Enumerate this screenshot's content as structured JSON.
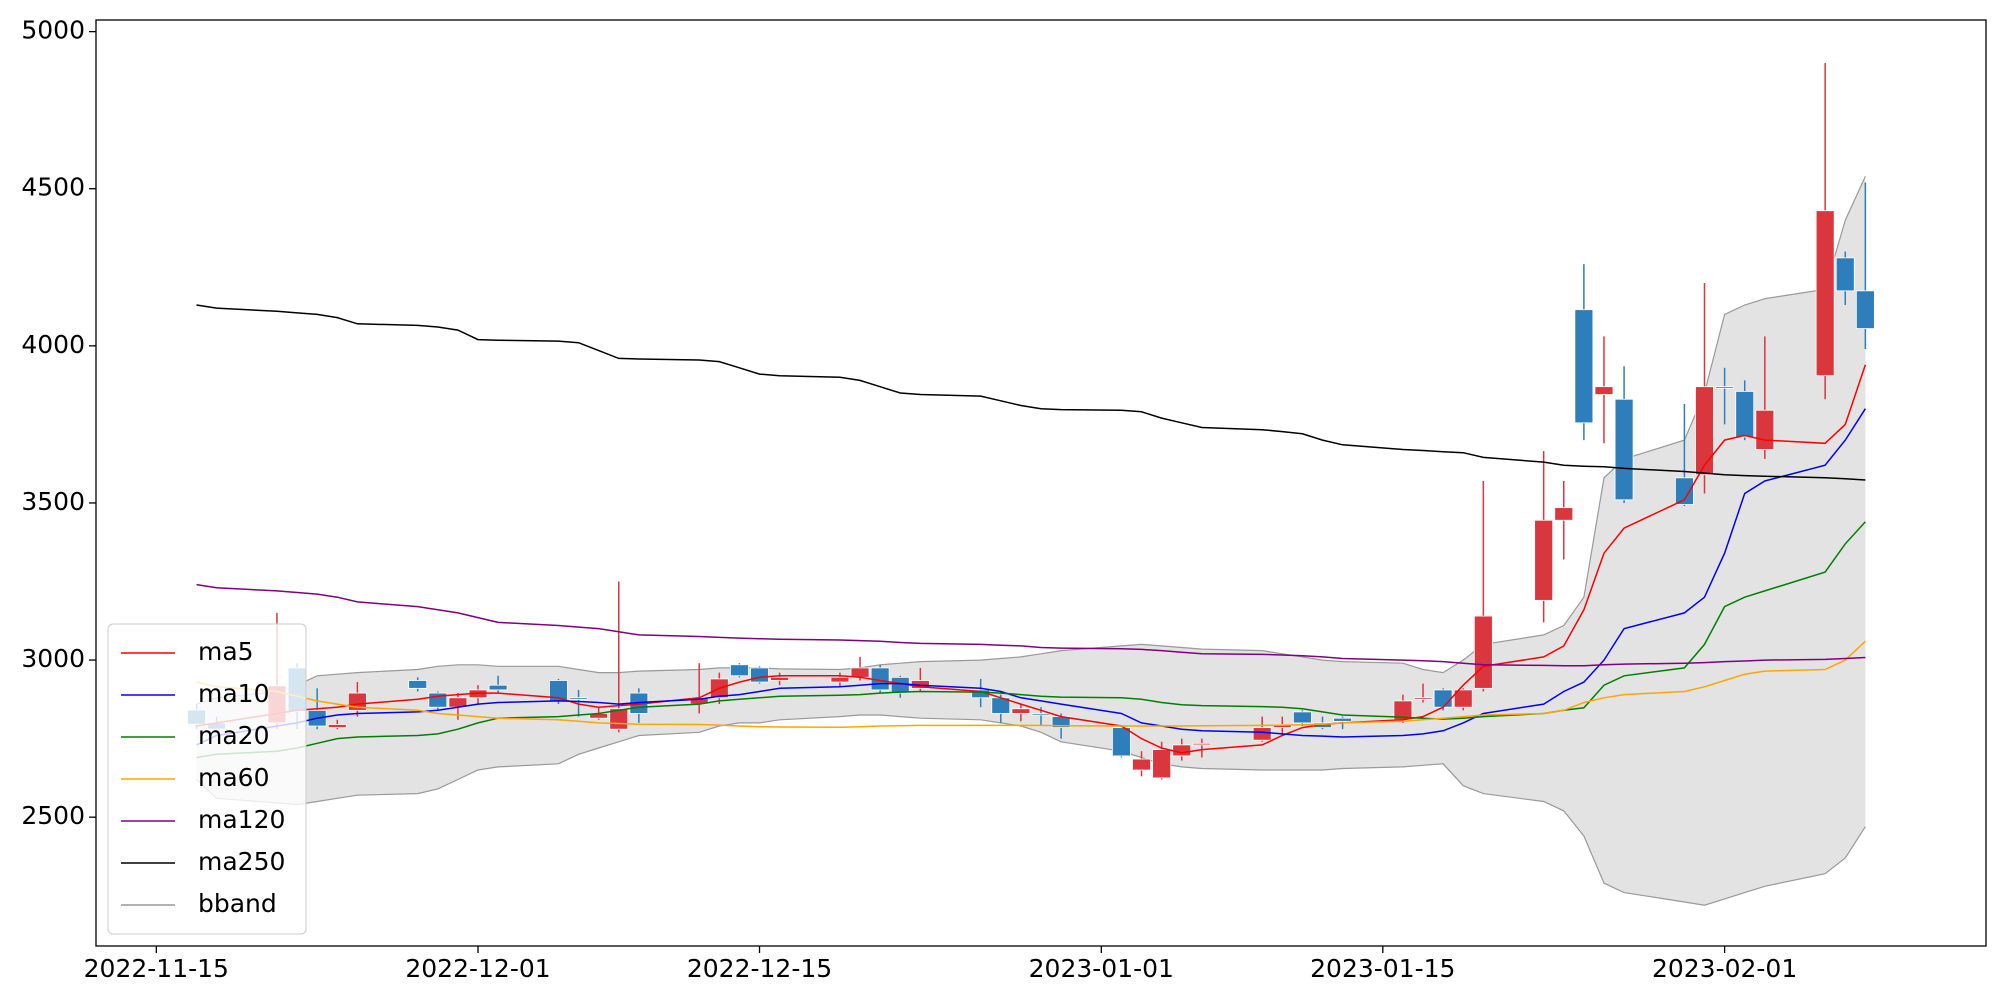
{
  "chart_data": {
    "type": "candlestick",
    "x": [
      "2022-11-17",
      "2022-11-18",
      "2022-11-21",
      "2022-11-22",
      "2022-11-23",
      "2022-11-24",
      "2022-11-25",
      "2022-11-28",
      "2022-11-29",
      "2022-11-30",
      "2022-12-01",
      "2022-12-02",
      "2022-12-05",
      "2022-12-06",
      "2022-12-07",
      "2022-12-08",
      "2022-12-09",
      "2022-12-12",
      "2022-12-13",
      "2022-12-14",
      "2022-12-15",
      "2022-12-16",
      "2022-12-19",
      "2022-12-20",
      "2022-12-21",
      "2022-12-22",
      "2022-12-23",
      "2022-12-26",
      "2022-12-27",
      "2022-12-28",
      "2022-12-29",
      "2022-12-30",
      "2023-01-02",
      "2023-01-03",
      "2023-01-04",
      "2023-01-05",
      "2023-01-06",
      "2023-01-09",
      "2023-01-10",
      "2023-01-11",
      "2023-01-12",
      "2023-01-13",
      "2023-01-16",
      "2023-01-17",
      "2023-01-18",
      "2023-01-19",
      "2023-01-20",
      "2023-01-23",
      "2023-01-24",
      "2023-01-25",
      "2023-01-26",
      "2023-01-27",
      "2023-01-30",
      "2023-01-31",
      "2023-02-01",
      "2023-02-02",
      "2023-02-03",
      "2023-02-06",
      "2023-02-07",
      "2023-02-08"
    ],
    "open": [
      2841,
      2800,
      2800,
      2975,
      2840,
      2785,
      2840,
      2935,
      2895,
      2850,
      2880,
      2920,
      2935,
      2880,
      2815,
      2780,
      2895,
      2860,
      2880,
      2985,
      2975,
      2935,
      2930,
      2945,
      2975,
      2945,
      2910,
      2905,
      2880,
      2830,
      2830,
      2820,
      2785,
      2650,
      2625,
      2695,
      2730,
      2745,
      2785,
      2835,
      2800,
      2815,
      2810,
      2875,
      2905,
      2850,
      2910,
      3190,
      3445,
      4115,
      3845,
      3830,
      3580,
      3590,
      3870,
      3855,
      3670,
      3905,
      4280,
      4175
    ],
    "high": [
      2860,
      2820,
      3150,
      2990,
      2910,
      2810,
      2930,
      2945,
      2900,
      2895,
      2920,
      2950,
      2940,
      2905,
      2850,
      3250,
      2910,
      2990,
      2960,
      2990,
      2980,
      2960,
      2960,
      3010,
      2985,
      2950,
      2975,
      2940,
      2890,
      2860,
      2850,
      2830,
      2790,
      2710,
      2740,
      2750,
      2750,
      2820,
      2820,
      2840,
      2820,
      2820,
      2890,
      2925,
      2910,
      2910,
      3570,
      3665,
      3570,
      4260,
      4030,
      3935,
      3815,
      4200,
      3930,
      3890,
      4030,
      4900,
      4300,
      4520
    ],
    "low": [
      2780,
      2770,
      2780,
      2780,
      2780,
      2780,
      2820,
      2900,
      2840,
      2810,
      2860,
      2895,
      2860,
      2820,
      2810,
      2770,
      2800,
      2830,
      2860,
      2945,
      2925,
      2920,
      2915,
      2935,
      2895,
      2880,
      2900,
      2850,
      2800,
      2805,
      2790,
      2750,
      2690,
      2630,
      2620,
      2680,
      2690,
      2740,
      2760,
      2790,
      2780,
      2780,
      2800,
      2865,
      2840,
      2840,
      2900,
      3120,
      3320,
      3700,
      3690,
      3500,
      3490,
      3530,
      3750,
      3700,
      3640,
      3830,
      4130,
      3990
    ],
    "close": [
      2796,
      2780,
      2918,
      2837,
      2790,
      2795,
      2895,
      2910,
      2850,
      2880,
      2905,
      2905,
      2870,
      2875,
      2830,
      2845,
      2830,
      2880,
      2940,
      2950,
      2930,
      2945,
      2945,
      2975,
      2905,
      2895,
      2935,
      2880,
      2830,
      2845,
      2825,
      2785,
      2695,
      2685,
      2715,
      2730,
      2735,
      2785,
      2795,
      2800,
      2785,
      2805,
      2870,
      2880,
      2850,
      2905,
      3140,
      3445,
      3485,
      3755,
      3870,
      3510,
      3495,
      3870,
      3865,
      3710,
      3795,
      4430,
      4175,
      4055
    ],
    "up_color": "#d9363e",
    "down_color": "#2e7ebc",
    "series": [
      {
        "name": "ma5",
        "color": "#ff0000",
        "values": [
          2790,
          2800,
          2830,
          2840,
          2845,
          2850,
          2860,
          2875,
          2885,
          2890,
          2895,
          2895,
          2880,
          2860,
          2850,
          2855,
          2860,
          2880,
          2910,
          2930,
          2945,
          2950,
          2950,
          2945,
          2935,
          2925,
          2915,
          2900,
          2880,
          2860,
          2840,
          2820,
          2790,
          2750,
          2720,
          2705,
          2715,
          2730,
          2760,
          2785,
          2795,
          2800,
          2810,
          2820,
          2850,
          2920,
          2980,
          3010,
          3045,
          3160,
          3340,
          3420,
          3510,
          3620,
          3700,
          3715,
          3700,
          3690,
          3750,
          3940
        ]
      },
      {
        "name": "ma10",
        "color": "#0000ff",
        "values": [
          2730,
          2760,
          2790,
          2800,
          2815,
          2825,
          2830,
          2835,
          2840,
          2850,
          2860,
          2865,
          2870,
          2868,
          2865,
          2860,
          2865,
          2875,
          2885,
          2890,
          2900,
          2910,
          2915,
          2920,
          2925,
          2925,
          2920,
          2910,
          2900,
          2880,
          2870,
          2860,
          2830,
          2800,
          2790,
          2780,
          2775,
          2770,
          2765,
          2760,
          2758,
          2755,
          2760,
          2765,
          2775,
          2800,
          2830,
          2860,
          2900,
          2930,
          3000,
          3100,
          3150,
          3200,
          3340,
          3530,
          3570,
          3620,
          3700,
          3800
        ]
      },
      {
        "name": "ma20",
        "color": "#008000",
        "values": [
          2690,
          2700,
          2710,
          2720,
          2735,
          2750,
          2755,
          2760,
          2765,
          2780,
          2800,
          2815,
          2820,
          2825,
          2830,
          2840,
          2850,
          2860,
          2870,
          2875,
          2880,
          2885,
          2888,
          2890,
          2895,
          2898,
          2900,
          2898,
          2895,
          2890,
          2885,
          2882,
          2880,
          2875,
          2865,
          2858,
          2855,
          2852,
          2850,
          2845,
          2835,
          2825,
          2818,
          2815,
          2812,
          2815,
          2820,
          2830,
          2840,
          2848,
          2920,
          2950,
          2975,
          3050,
          3170,
          3200,
          3220,
          3280,
          3370,
          3440
        ]
      },
      {
        "name": "ma60",
        "color": "#ffa500",
        "values": [
          2930,
          2915,
          2900,
          2885,
          2870,
          2860,
          2850,
          2840,
          2830,
          2825,
          2820,
          2815,
          2810,
          2805,
          2800,
          2798,
          2796,
          2795,
          2793,
          2790,
          2788,
          2787,
          2786,
          2788,
          2790,
          2791,
          2792,
          2792,
          2792,
          2792,
          2792,
          2791,
          2790,
          2790,
          2790,
          2790,
          2791,
          2792,
          2793,
          2794,
          2796,
          2800,
          2805,
          2810,
          2815,
          2820,
          2825,
          2830,
          2840,
          2865,
          2880,
          2890,
          2900,
          2915,
          2935,
          2955,
          2965,
          2970,
          3000,
          3060
        ]
      },
      {
        "name": "ma120",
        "color": "#800080",
        "values": [
          3240,
          3230,
          3220,
          3215,
          3210,
          3200,
          3185,
          3170,
          3160,
          3150,
          3135,
          3120,
          3110,
          3105,
          3100,
          3090,
          3080,
          3075,
          3072,
          3070,
          3068,
          3066,
          3064,
          3062,
          3060,
          3056,
          3053,
          3050,
          3047,
          3045,
          3040,
          3038,
          3036,
          3034,
          3030,
          3025,
          3020,
          3018,
          3016,
          3014,
          3010,
          3005,
          3000,
          2998,
          2995,
          2990,
          2985,
          2983,
          2982,
          2982,
          2985,
          2987,
          2990,
          2992,
          2995,
          2997,
          3000,
          3002,
          3005,
          3008
        ]
      },
      {
        "name": "ma250",
        "color": "#000000",
        "values": [
          4130,
          4120,
          4110,
          4105,
          4100,
          4090,
          4070,
          4065,
          4060,
          4050,
          4020,
          4018,
          4015,
          4010,
          3985,
          3960,
          3958,
          3955,
          3950,
          3930,
          3910,
          3905,
          3900,
          3890,
          3870,
          3850,
          3845,
          3840,
          3825,
          3810,
          3800,
          3797,
          3795,
          3790,
          3770,
          3755,
          3740,
          3733,
          3727,
          3720,
          3700,
          3685,
          3670,
          3667,
          3663,
          3660,
          3645,
          3630,
          3620,
          3617,
          3615,
          3610,
          3600,
          3595,
          3590,
          3587,
          3585,
          3580,
          3577,
          3573
        ]
      }
    ],
    "band": {
      "name": "bband",
      "color": "#999999",
      "fill": "#e3e3e3",
      "upper": [
        2860,
        2880,
        2900,
        2920,
        2950,
        2955,
        2960,
        2970,
        2980,
        2985,
        2985,
        2980,
        2980,
        2970,
        2960,
        2960,
        2965,
        2970,
        2975,
        2975,
        2975,
        2972,
        2970,
        2975,
        2985,
        2990,
        2995,
        3000,
        3005,
        3010,
        3020,
        3030,
        3045,
        3050,
        3045,
        3040,
        3035,
        3030,
        3020,
        3010,
        3000,
        2995,
        2990,
        2970,
        2960,
        3000,
        3050,
        3080,
        3110,
        3200,
        3580,
        3640,
        3700,
        3850,
        4100,
        4130,
        4150,
        4180,
        4400,
        4540
      ],
      "lower": [
        2620,
        2560,
        2545,
        2540,
        2550,
        2560,
        2570,
        2575,
        2590,
        2620,
        2650,
        2660,
        2670,
        2700,
        2720,
        2740,
        2760,
        2770,
        2790,
        2800,
        2800,
        2810,
        2820,
        2825,
        2825,
        2820,
        2815,
        2810,
        2800,
        2790,
        2770,
        2740,
        2710,
        2690,
        2670,
        2660,
        2655,
        2650,
        2650,
        2650,
        2650,
        2655,
        2660,
        2665,
        2670,
        2600,
        2575,
        2550,
        2520,
        2440,
        2290,
        2260,
        2230,
        2220,
        2240,
        2260,
        2280,
        2320,
        2370,
        2470
      ]
    },
    "xlim": [
      "2022-11-12",
      "2023-02-14"
    ],
    "xticks": [
      "2022-11-15",
      "2022-12-01",
      "2022-12-15",
      "2023-01-01",
      "2023-01-15",
      "2023-02-01"
    ],
    "ylim": [
      2090,
      5037
    ],
    "yticks": [
      2500,
      3000,
      3500,
      4000,
      4500,
      5000
    ],
    "legend": "lower left"
  }
}
